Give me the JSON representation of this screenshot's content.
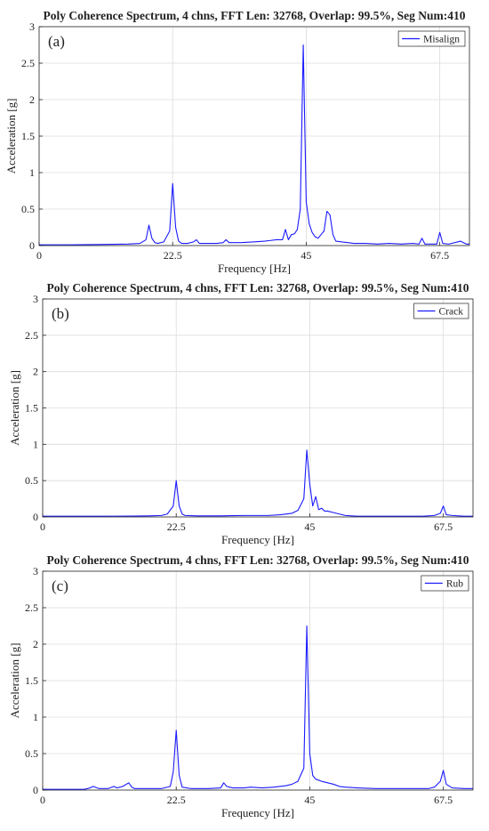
{
  "figure": {
    "x_ticks": [
      "0",
      "22.5",
      "45",
      "67.5"
    ],
    "y_ticks": [
      "0",
      "0.5",
      "1",
      "1.5",
      "2",
      "2.5",
      "3"
    ]
  },
  "chart_data": [
    {
      "type": "line",
      "panel_label": "(a)",
      "title": "Poly Coherence Spectrum, 4 chns, FFT Len: 32768, Overlap: 99.5%, Seg Num:410",
      "xlabel": "Frequency [Hz]",
      "ylabel": "Acceleration [g]",
      "xlim": [
        0,
        72.5
      ],
      "ylim": [
        0,
        3
      ],
      "grid": true,
      "legend_position": "top-right",
      "line_color": "#1a1aff",
      "series": [
        {
          "name": "Misalign",
          "x": [
            0,
            5,
            10,
            15,
            17,
            18,
            18.5,
            19,
            19.5,
            20,
            21,
            22,
            22.5,
            23,
            23.5,
            24,
            25,
            26,
            26.5,
            27,
            28,
            30,
            31,
            31.5,
            32,
            34,
            36,
            38,
            39,
            40,
            41,
            41.5,
            42,
            42.5,
            43,
            43.5,
            44,
            44.5,
            45,
            45.5,
            46,
            46.5,
            47,
            47.5,
            48,
            48.5,
            49,
            49.5,
            50,
            51,
            52,
            53,
            55,
            57,
            59,
            61,
            63,
            64,
            64.5,
            65,
            67,
            67.5,
            68,
            69,
            71,
            72,
            72.5
          ],
          "y": [
            0.01,
            0.01,
            0.015,
            0.02,
            0.03,
            0.08,
            0.28,
            0.1,
            0.04,
            0.03,
            0.05,
            0.2,
            0.85,
            0.25,
            0.06,
            0.03,
            0.03,
            0.05,
            0.08,
            0.03,
            0.03,
            0.03,
            0.04,
            0.08,
            0.04,
            0.04,
            0.05,
            0.06,
            0.07,
            0.08,
            0.08,
            0.22,
            0.08,
            0.15,
            0.16,
            0.22,
            0.5,
            2.75,
            0.6,
            0.3,
            0.18,
            0.12,
            0.1,
            0.15,
            0.2,
            0.47,
            0.42,
            0.15,
            0.06,
            0.05,
            0.04,
            0.03,
            0.03,
            0.02,
            0.03,
            0.02,
            0.03,
            0.02,
            0.1,
            0.02,
            0.02,
            0.18,
            0.03,
            0.02,
            0.06,
            0.02,
            0.02
          ]
        }
      ]
    },
    {
      "type": "line",
      "panel_label": "(b)",
      "title": "Poly Coherence Spectrum, 4 chns, FFT Len: 32768, Overlap: 99.5%, Seg Num:410",
      "xlabel": "Frequency [Hz]",
      "ylabel": "Acceleration [g]",
      "xlim": [
        0,
        72.5
      ],
      "ylim": [
        0,
        3
      ],
      "grid": true,
      "legend_position": "top-right",
      "line_color": "#1a1aff",
      "series": [
        {
          "name": "Crack",
          "x": [
            0,
            5,
            10,
            15,
            18,
            20,
            21,
            22,
            22.5,
            23,
            23.5,
            24,
            26,
            30,
            34,
            38,
            40,
            42,
            43,
            44,
            44.5,
            45,
            45.5,
            46,
            46.5,
            47,
            47.5,
            48,
            49,
            50,
            51,
            53,
            56,
            60,
            64,
            66,
            67,
            67.5,
            68,
            69,
            71,
            72.5
          ],
          "y": [
            0.01,
            0.01,
            0.01,
            0.012,
            0.015,
            0.02,
            0.04,
            0.15,
            0.5,
            0.15,
            0.04,
            0.02,
            0.015,
            0.015,
            0.02,
            0.02,
            0.03,
            0.05,
            0.09,
            0.25,
            0.92,
            0.45,
            0.15,
            0.28,
            0.1,
            0.12,
            0.08,
            0.08,
            0.06,
            0.04,
            0.02,
            0.01,
            0.01,
            0.01,
            0.01,
            0.02,
            0.05,
            0.15,
            0.03,
            0.02,
            0.01,
            0.01
          ]
        }
      ]
    },
    {
      "type": "line",
      "panel_label": "(c)",
      "title": "Poly Coherence Spectrum, 4 chns, FFT Len: 32768, Overlap: 99.5%, Seg Num:410",
      "xlabel": "Frequency [Hz]",
      "ylabel": "Acceleration [g]",
      "xlim": [
        0,
        72.5
      ],
      "ylim": [
        0,
        3
      ],
      "grid": true,
      "legend_position": "top-right",
      "line_color": "#1a1aff",
      "series": [
        {
          "name": "Rub",
          "x": [
            0,
            5,
            7,
            8,
            8.5,
            9.5,
            11,
            12,
            12.5,
            13.5,
            14.5,
            15,
            15.5,
            18,
            20,
            21.5,
            22,
            22.5,
            23,
            23.5,
            25,
            28,
            30,
            30.5,
            31,
            32,
            33,
            34,
            35,
            37,
            39,
            41,
            42,
            43,
            44,
            44.5,
            45,
            45.5,
            46,
            47,
            48,
            49,
            50,
            51,
            53,
            56,
            60,
            63,
            65,
            66,
            67,
            67.5,
            68,
            69,
            71,
            72.5
          ],
          "y": [
            0.01,
            0.01,
            0.01,
            0.03,
            0.05,
            0.02,
            0.02,
            0.05,
            0.03,
            0.05,
            0.1,
            0.04,
            0.02,
            0.02,
            0.02,
            0.05,
            0.25,
            0.82,
            0.2,
            0.04,
            0.02,
            0.02,
            0.03,
            0.1,
            0.05,
            0.03,
            0.03,
            0.03,
            0.04,
            0.03,
            0.04,
            0.06,
            0.08,
            0.12,
            0.3,
            2.25,
            0.5,
            0.2,
            0.15,
            0.12,
            0.1,
            0.08,
            0.05,
            0.04,
            0.03,
            0.02,
            0.02,
            0.02,
            0.02,
            0.04,
            0.12,
            0.27,
            0.08,
            0.03,
            0.02,
            0.02
          ]
        }
      ]
    }
  ]
}
